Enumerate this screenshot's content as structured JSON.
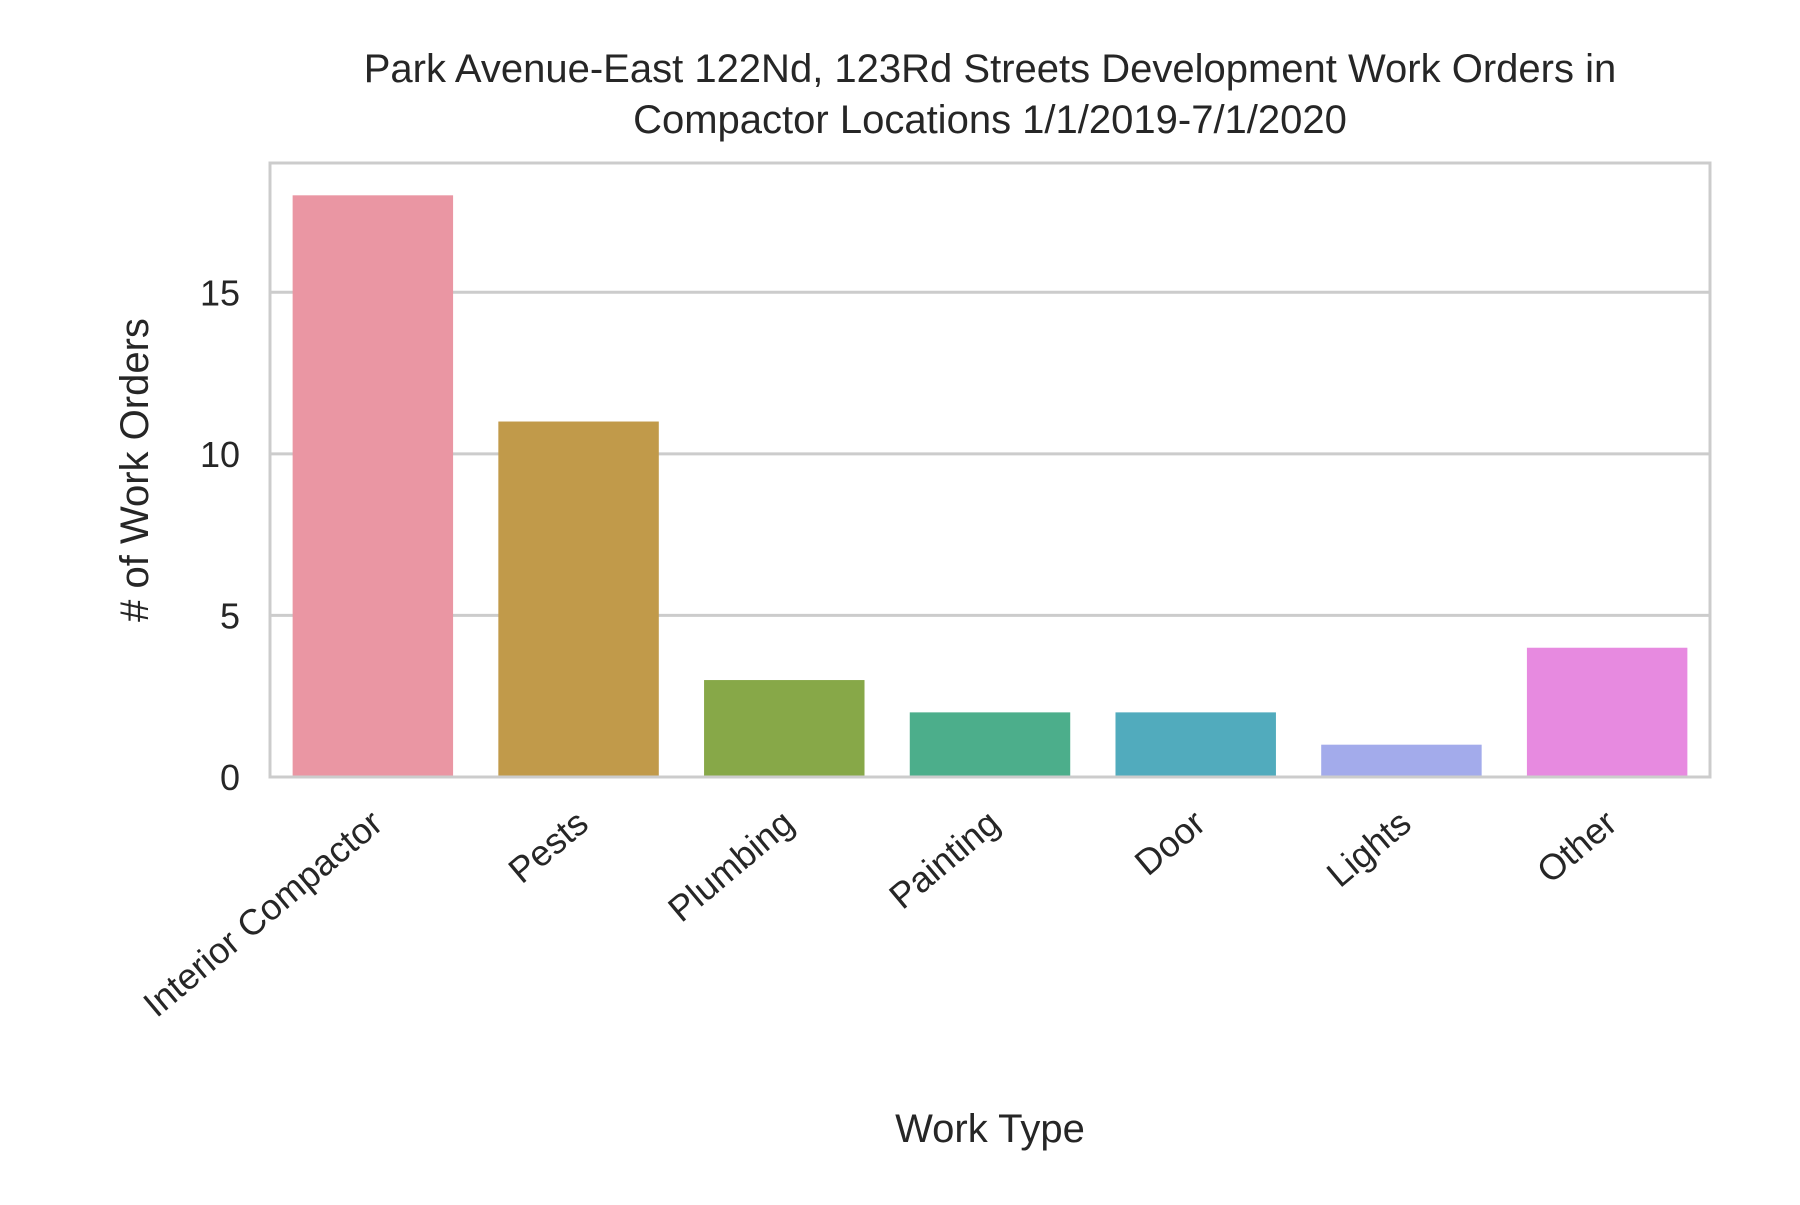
{
  "chart_data": {
    "type": "bar",
    "title_lines": [
      "Park Avenue-East 122Nd, 123Rd Streets Development Work Orders in",
      "Compactor Locations 1/1/2019-7/1/2020"
    ],
    "xlabel": "Work Type",
    "ylabel": "# of Work Orders",
    "categories": [
      "Interior Compactor",
      "Pests",
      "Plumbing",
      "Painting",
      "Door",
      "Lights",
      "Other"
    ],
    "values": [
      18,
      11,
      3,
      2,
      2,
      1,
      4
    ],
    "colors": [
      "#ea96a3",
      "#c19a4a",
      "#87a848",
      "#4cae8b",
      "#51abbd",
      "#a3abeb",
      "#e78ae0"
    ],
    "ylim": [
      0,
      19
    ],
    "yticks": [
      0,
      5,
      10,
      15
    ],
    "grid": "horizontal",
    "legend": "none"
  }
}
